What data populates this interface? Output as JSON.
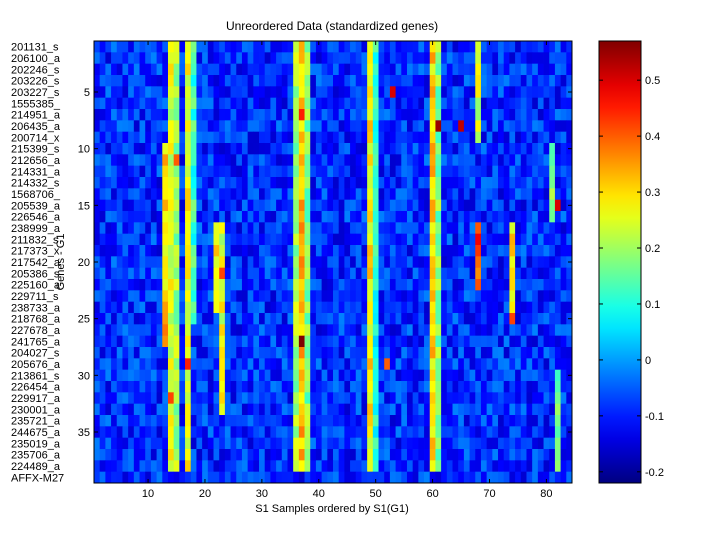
{
  "chart_data": {
    "type": "heatmap",
    "title": "Unreordered Data (standardized genes)",
    "xlabel": "S1 Samples ordered by S1(G1)",
    "ylabel": "Genes - G1",
    "xlim": [
      0.5,
      84.5
    ],
    "ylim": [
      0.5,
      39.5
    ],
    "n_cols": 84,
    "n_rows": 39,
    "x_ticks": [
      10,
      20,
      30,
      40,
      50,
      60,
      70,
      80
    ],
    "y_ticks": [
      5,
      10,
      15,
      20,
      25,
      30,
      35
    ],
    "row_labels": [
      "201131_s",
      "206100_a",
      "202246_s",
      "203226_s",
      "203227_s",
      "1555385_",
      "214951_a",
      "206435_a",
      "200714_x",
      "215399_s",
      "212656_a",
      "214331_a",
      "214332_s",
      "1568706_",
      "205539_a",
      "226546_a",
      "238999_a",
      "211832_s",
      "217373_x",
      "217542_a",
      "205386_s",
      "225160_a",
      "229711_s",
      "238733_a",
      "218768_a",
      "227678_a",
      "241765_a",
      "204027_s",
      "205676_a",
      "213861_s",
      "226454_a",
      "229917_a",
      "230001_a",
      "235721_a",
      "244675_a",
      "235019_a",
      "235706_a",
      "224489_a",
      "AFFX-M27"
    ],
    "colorbar": {
      "colormap": "jet",
      "range": [
        -0.22,
        0.57
      ],
      "ticks": [
        -0.2,
        -0.1,
        0,
        0.1,
        0.2,
        0.3,
        0.4,
        0.5
      ]
    },
    "bright_columns": [
      {
        "col": 13,
        "rows": [
          10,
          27
        ],
        "value": 0.3
      },
      {
        "col": 14,
        "rows": [
          1,
          38
        ],
        "value": 0.25
      },
      {
        "col": 15,
        "rows": [
          1,
          38
        ],
        "value": 0.2
      },
      {
        "col": 17,
        "rows": [
          1,
          38
        ],
        "value": 0.26
      },
      {
        "col": 18,
        "rows": [
          1,
          25
        ],
        "value": 0.12
      },
      {
        "col": 22,
        "rows": [
          17,
          24
        ],
        "value": 0.3
      },
      {
        "col": 23,
        "rows": [
          17,
          33
        ],
        "value": 0.25
      },
      {
        "col": 36,
        "rows": [
          1,
          38
        ],
        "value": 0.2
      },
      {
        "col": 37,
        "rows": [
          1,
          38
        ],
        "value": 0.32
      },
      {
        "col": 38,
        "rows": [
          1,
          38
        ],
        "value": 0.18
      },
      {
        "col": 49,
        "rows": [
          1,
          38
        ],
        "value": 0.28
      },
      {
        "col": 50,
        "rows": [
          1,
          38
        ],
        "value": 0.1
      },
      {
        "col": 60,
        "rows": [
          1,
          38
        ],
        "value": 0.3
      },
      {
        "col": 61,
        "rows": [
          1,
          38
        ],
        "value": 0.18
      },
      {
        "col": 68,
        "rows": [
          1,
          9
        ],
        "value": 0.24
      },
      {
        "col": 68,
        "rows": [
          17,
          22
        ],
        "value": 0.4
      },
      {
        "col": 74,
        "rows": [
          17,
          25
        ],
        "value": 0.28
      },
      {
        "col": 81,
        "rows": [
          10,
          16
        ],
        "value": 0.18
      },
      {
        "col": 82,
        "rows": [
          30,
          38
        ],
        "value": 0.15
      }
    ],
    "hot_cells": [
      {
        "col": 65,
        "row": 8,
        "value": 0.52
      },
      {
        "col": 61,
        "row": 8,
        "value": 0.55
      },
      {
        "col": 53,
        "row": 5,
        "value": 0.5
      },
      {
        "col": 37,
        "row": 7,
        "value": 0.45
      },
      {
        "col": 37,
        "row": 27,
        "value": 0.57
      },
      {
        "col": 68,
        "row": 18,
        "value": 0.48
      },
      {
        "col": 74,
        "row": 25,
        "value": 0.42
      },
      {
        "col": 82,
        "row": 15,
        "value": 0.5
      },
      {
        "col": 17,
        "row": 29,
        "value": 0.45
      },
      {
        "col": 14,
        "row": 32,
        "value": 0.42
      },
      {
        "col": 23,
        "row": 21,
        "value": 0.42
      },
      {
        "col": 52,
        "row": 29,
        "value": 0.4
      },
      {
        "col": 13,
        "row": 26,
        "value": 0.38
      },
      {
        "col": 15,
        "row": 11,
        "value": 0.4
      }
    ]
  }
}
